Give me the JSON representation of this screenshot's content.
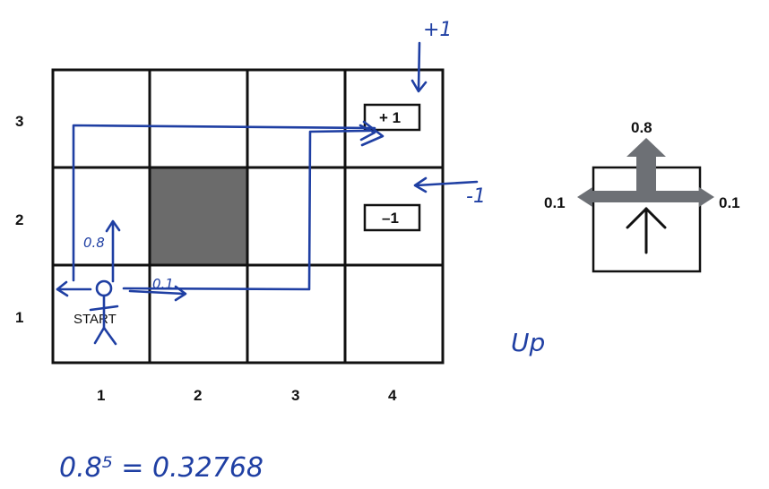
{
  "grid": {
    "row_labels": [
      "3",
      "2",
      "1"
    ],
    "col_labels": [
      "1",
      "2",
      "3",
      "4"
    ],
    "start_label": "START",
    "positive_reward": "+ 1",
    "negative_reward": "–1",
    "wall_color": "#6b6b6b"
  },
  "action_model": {
    "forward_prob": "0.8",
    "left_prob": "0.1",
    "right_prob": "0.1",
    "arrow_color": "#6d7075"
  },
  "annotations": {
    "plus_one": "+1",
    "minus_one": "-1",
    "up_prob": "0.8",
    "right_prob": "0.1",
    "action_word": "Up",
    "equation": "0.8⁵ = 0.32768"
  }
}
